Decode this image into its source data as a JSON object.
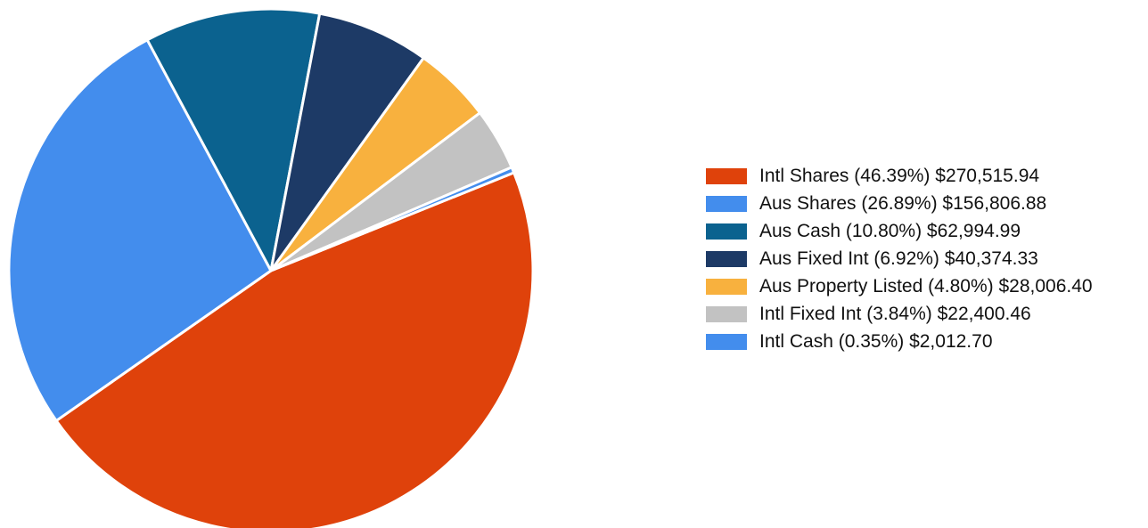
{
  "chart_data": {
    "type": "pie",
    "slices": [
      {
        "name": "Intl Shares",
        "label": "Intl Shares (46.39%) $270,515.94",
        "percent": 46.39,
        "value": 270515.94,
        "color": "#df420b"
      },
      {
        "name": "Aus Shares",
        "label": "Aus Shares (26.89%) $156,806.88",
        "percent": 26.89,
        "value": 156806.88,
        "color": "#438ded"
      },
      {
        "name": "Aus Cash",
        "label": "Aus Cash (10.80%) $62,994.99",
        "percent": 10.8,
        "value": 62994.99,
        "color": "#0b628f"
      },
      {
        "name": "Aus Fixed Int",
        "label": "Aus Fixed Int (6.92%) $40,374.33",
        "percent": 6.92,
        "value": 40374.33,
        "color": "#1d3a66"
      },
      {
        "name": "Aus Property Listed",
        "label": "Aus Property Listed (4.80%) $28,006.40",
        "percent": 4.8,
        "value": 28006.4,
        "color": "#f8b13e"
      },
      {
        "name": "Intl Fixed Int",
        "label": "Intl Fixed Int (3.84%) $22,400.46",
        "percent": 3.84,
        "value": 22400.46,
        "color": "#c2c2c2"
      },
      {
        "name": "Intl Cash",
        "label": "Intl Cash (0.35%) $2,012.70",
        "percent": 0.35,
        "value": 2012.7,
        "color": "#438ded"
      }
    ],
    "legend_position": "right"
  }
}
